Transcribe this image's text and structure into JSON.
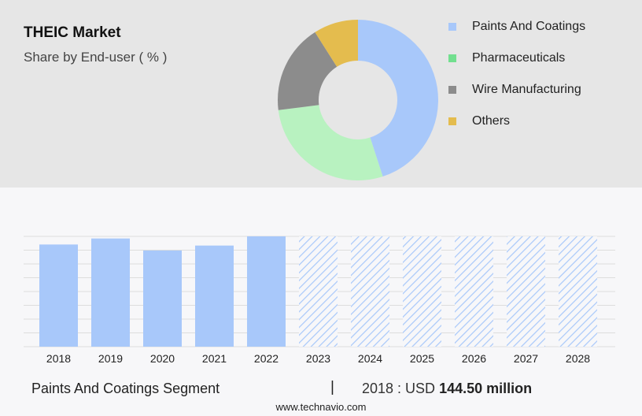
{
  "header": {
    "title": "THEIC Market",
    "subtitle": "Share by End-user ( % )"
  },
  "legend": [
    {
      "label": "Paints And Coatings",
      "color": "#a8c8fa"
    },
    {
      "label": "Pharmaceuticals",
      "color": "#72df8f"
    },
    {
      "label": "Wire Manufacturing",
      "color": "#8c8c8c"
    },
    {
      "label": "Others",
      "color": "#e4bc4e"
    }
  ],
  "chart_data": [
    {
      "type": "pie",
      "subtitle": "Share by End-user ( % )",
      "hole": "donut",
      "slices": [
        {
          "label": "Paints And Coatings",
          "value": 45,
          "color": "#a8c8fa"
        },
        {
          "label": "Pharmaceuticals",
          "value": 28,
          "color": "#b8f2c0"
        },
        {
          "label": "Wire Manufacturing",
          "value": 18,
          "color": "#8c8c8c"
        },
        {
          "label": "Others",
          "value": 9,
          "color": "#e4bc4e"
        }
      ]
    },
    {
      "type": "bar",
      "categories": [
        "2018",
        "2019",
        "2020",
        "2021",
        "2022",
        "2023",
        "2024",
        "2025",
        "2026",
        "2027",
        "2028"
      ],
      "values": [
        144.5,
        153,
        136,
        143,
        156,
        null,
        null,
        null,
        null,
        null,
        null
      ],
      "forecast_categories": [
        "2023",
        "2024",
        "2025",
        "2026",
        "2027",
        "2028"
      ],
      "bar_color": "#a8c8fa",
      "forecast_style": "hatched",
      "grid": true
    }
  ],
  "footer": {
    "segment": "Paints And Coatings Segment",
    "separator": "|",
    "year_label": "2018 : USD",
    "value": "144.50 million",
    "site": "www.technavio.com"
  }
}
